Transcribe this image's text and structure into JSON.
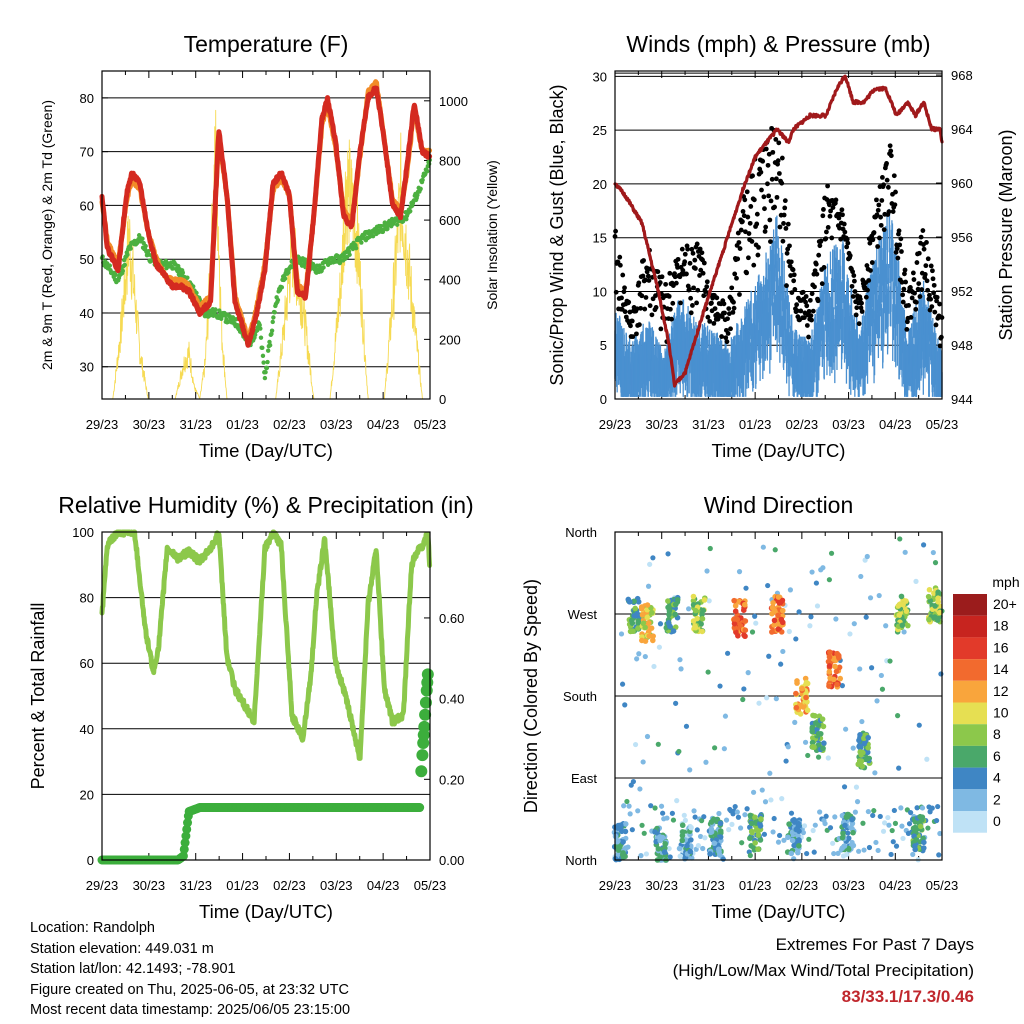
{
  "colors": {
    "red": "#d42a20",
    "orange": "#f28c28",
    "green": "#4cb040",
    "yellow": "#f5d84a",
    "black": "#000000",
    "blue": "#4a90d0",
    "maroon": "#a0191b",
    "rh": "#8cc84b",
    "precip": "#3cae3c"
  },
  "chart_data": [
    {
      "id": "temperature",
      "type": "line",
      "title": "Temperature (F)",
      "xlabel": "Time (Day/UTC)",
      "ylabel": "2m & 9m T (Red, Orange) & 2m Td (Green)",
      "y2label": "Solar Insolation (Yellow)",
      "x_ticks": [
        "29/23",
        "30/23",
        "31/23",
        "01/23",
        "02/23",
        "03/23",
        "04/23",
        "05/23"
      ],
      "xlim": [
        0,
        6.04
      ],
      "ylim": [
        24,
        85
      ],
      "y_ticks": [
        30,
        40,
        50,
        60,
        70,
        80
      ],
      "y2lim": [
        0,
        1100
      ],
      "y2_ticks": [
        0,
        200,
        400,
        600,
        800,
        1000
      ],
      "grid": "horizontal",
      "series": [
        {
          "name": "2m T",
          "color": "red",
          "axis": "y",
          "x": [
            0,
            0.1,
            0.3,
            0.45,
            0.55,
            0.7,
            0.85,
            1.0,
            1.15,
            1.3,
            1.45,
            1.6,
            1.8,
            2.0,
            2.15,
            2.3,
            2.45,
            2.6,
            2.7,
            2.85,
            3.0,
            3.15,
            3.3,
            3.45,
            3.6,
            3.75,
            3.9,
            4.05,
            4.15,
            4.3,
            4.45,
            4.6,
            4.75,
            4.9,
            5.05,
            5.2,
            5.35,
            5.5,
            5.6,
            5.75,
            5.9,
            6.04
          ],
          "y": [
            62,
            52,
            48,
            62,
            66,
            64,
            55,
            49,
            47,
            45,
            45,
            44,
            40,
            42,
            74,
            62,
            42,
            37,
            34,
            40,
            48,
            64,
            66,
            62,
            44,
            43,
            58,
            76,
            80,
            72,
            58,
            56,
            70,
            80,
            82,
            72,
            60,
            58,
            66,
            79,
            70,
            69
          ]
        },
        {
          "name": "9m T",
          "color": "orange",
          "axis": "y",
          "x": [
            0,
            0.1,
            0.3,
            0.45,
            0.55,
            0.7,
            0.85,
            1.0,
            1.15,
            1.3,
            1.45,
            1.6,
            1.8,
            2.0,
            2.15,
            2.3,
            2.45,
            2.6,
            2.7,
            2.85,
            3.0,
            3.15,
            3.3,
            3.45,
            3.6,
            3.75,
            3.9,
            4.05,
            4.15,
            4.3,
            4.45,
            4.6,
            4.75,
            4.9,
            5.05,
            5.2,
            5.35,
            5.5,
            5.6,
            5.75,
            5.9,
            6.04
          ],
          "y": [
            61,
            53,
            49,
            61,
            65,
            63,
            55,
            50,
            47,
            46,
            46,
            45,
            41,
            43,
            73,
            62,
            43,
            38,
            35,
            41,
            49,
            63,
            65,
            62,
            45,
            44,
            58,
            75,
            79,
            71,
            59,
            57,
            69,
            81,
            83,
            72,
            61,
            59,
            65,
            78,
            70,
            70
          ]
        },
        {
          "name": "2m Td",
          "color": "green",
          "axis": "y",
          "x": [
            0,
            0.15,
            0.3,
            0.5,
            0.7,
            0.9,
            1.1,
            1.3,
            1.5,
            1.7,
            1.9,
            2.1,
            2.3,
            2.5,
            2.7,
            2.9,
            3.0,
            3.2,
            3.4,
            3.6,
            3.8,
            4.0,
            4.2,
            4.4,
            4.6,
            4.8,
            5.0,
            5.2,
            5.4,
            5.6,
            5.8,
            6.04
          ],
          "y": [
            50,
            48,
            46,
            52,
            54,
            50,
            49,
            49,
            47,
            44,
            40,
            40,
            39,
            38,
            34,
            38,
            28,
            42,
            48,
            50,
            49,
            48,
            50,
            50,
            52,
            54,
            55,
            56,
            57,
            58,
            62,
            68
          ]
        },
        {
          "name": "Solar Insolation",
          "color": "yellow",
          "axis": "y2",
          "x": [
            0,
            0.2,
            0.35,
            0.5,
            0.6,
            0.7,
            0.85,
            1.0,
            1.2,
            1.35,
            1.5,
            1.6,
            1.7,
            1.8,
            1.9,
            2.0,
            2.1,
            2.2,
            2.3,
            2.4,
            2.6,
            2.8,
            3.0,
            3.2,
            3.35,
            3.5,
            3.7,
            3.9,
            4.0,
            4.2,
            4.4,
            4.5,
            4.7,
            4.9,
            5.0,
            5.2,
            5.4,
            5.5,
            5.7,
            5.9,
            6.04
          ],
          "y": [
            0,
            0,
            300,
            700,
            450,
            200,
            0,
            0,
            0,
            0,
            150,
            200,
            50,
            0,
            150,
            550,
            1080,
            300,
            0,
            0,
            0,
            0,
            0,
            0,
            300,
            650,
            400,
            0,
            0,
            0,
            500,
            950,
            700,
            0,
            0,
            0,
            550,
            900,
            450,
            0,
            0
          ]
        }
      ]
    },
    {
      "id": "winds",
      "type": "scatter",
      "title": "Winds (mph) & Pressure (mb)",
      "xlabel": "Time (Day/UTC)",
      "ylabel": "Sonic/Prop Wind & Gust (Blue, Black)",
      "y2label": "Station Pressure (Maroon)",
      "x_ticks": [
        "29/23",
        "30/23",
        "31/23",
        "01/23",
        "02/23",
        "03/23",
        "04/23",
        "05/23"
      ],
      "xlim": [
        0,
        6.04
      ],
      "ylim": [
        0,
        30.5
      ],
      "y_ticks": [
        0,
        5,
        10,
        15,
        20,
        25,
        30
      ],
      "y2lim": [
        944,
        968.3
      ],
      "y2_ticks": [
        944,
        948,
        952,
        956,
        960,
        964,
        968
      ],
      "grid": "horizontal",
      "series": [
        {
          "name": "Wind (envelope)",
          "color": "blue",
          "axis": "y",
          "x": [
            0,
            0.3,
            0.6,
            0.9,
            1.2,
            1.5,
            1.8,
            2.1,
            2.4,
            2.7,
            3.0,
            3.3,
            3.6,
            3.9,
            4.2,
            4.5,
            4.8,
            5.1,
            5.4,
            5.7,
            6.04
          ],
          "y": [
            8,
            5,
            7,
            4,
            9,
            7,
            6,
            5,
            8,
            11,
            16,
            6,
            5,
            12,
            14,
            6,
            13,
            17,
            6,
            10,
            4
          ]
        },
        {
          "name": "Gust (envelope)",
          "color": "black",
          "axis": "y",
          "x": [
            0,
            0.3,
            0.6,
            0.9,
            1.2,
            1.5,
            1.8,
            2.1,
            2.4,
            2.7,
            3.0,
            3.3,
            3.6,
            3.9,
            4.2,
            4.5,
            4.8,
            5.1,
            5.4,
            5.7,
            6.04
          ],
          "y": [
            16,
            8,
            15,
            11,
            14,
            16,
            10,
            9,
            20,
            24,
            28,
            12,
            9,
            20,
            18,
            9,
            18,
            24,
            10,
            16,
            8
          ]
        },
        {
          "name": "Station Pressure",
          "color": "maroon",
          "axis": "y2",
          "x": [
            0,
            0.2,
            0.5,
            0.8,
            1.0,
            1.1,
            1.3,
            1.6,
            2.0,
            2.4,
            2.6,
            2.8,
            3.0,
            3.2,
            3.3,
            3.6,
            3.9,
            4.1,
            4.25,
            4.4,
            4.6,
            4.8,
            5.0,
            5.2,
            5.4,
            5.55,
            5.7,
            5.85,
            6.0,
            6.04
          ],
          "y": [
            960,
            959,
            957,
            952,
            948,
            945,
            946,
            950,
            955,
            960,
            962,
            963,
            964,
            963,
            964,
            965,
            965,
            967,
            968,
            966,
            966,
            967,
            967,
            965,
            966,
            965,
            966,
            964,
            964,
            963
          ]
        }
      ]
    },
    {
      "id": "humidity",
      "type": "line",
      "title": "Relative Humidity (%) & Precipitation (in)",
      "xlabel": "Time (Day/UTC)",
      "ylabel": "Percent & Total Rainfall",
      "x_ticks": [
        "29/23",
        "30/23",
        "31/23",
        "01/23",
        "02/23",
        "03/23",
        "04/23",
        "05/23"
      ],
      "xlim": [
        0,
        6.04
      ],
      "ylim": [
        0,
        100
      ],
      "y_ticks": [
        0,
        20,
        40,
        60,
        80,
        100
      ],
      "y2lim": [
        0,
        0.813
      ],
      "y2_ticks": [
        "0.00",
        "0.20",
        "0.40",
        "0.60"
      ],
      "grid": "horizontal",
      "series": [
        {
          "name": "Relative Humidity",
          "color": "rh",
          "axis": "y",
          "x": [
            0,
            0.1,
            0.3,
            0.6,
            0.8,
            0.95,
            1.05,
            1.2,
            1.4,
            1.6,
            1.8,
            2.0,
            2.15,
            2.3,
            2.45,
            2.6,
            2.8,
            3.0,
            3.15,
            3.3,
            3.5,
            3.7,
            3.85,
            3.95,
            4.1,
            4.3,
            4.45,
            4.6,
            4.75,
            4.9,
            5.05,
            5.2,
            5.35,
            5.55,
            5.7,
            5.85,
            5.9,
            6.0,
            6.04
          ],
          "y": [
            75,
            96,
            100,
            100,
            70,
            57,
            66,
            95,
            92,
            94,
            91,
            95,
            100,
            62,
            52,
            48,
            42,
            95,
            100,
            96,
            44,
            37,
            57,
            80,
            98,
            60,
            52,
            42,
            31,
            78,
            95,
            52,
            42,
            44,
            90,
            96,
            95,
            100,
            88
          ]
        },
        {
          "name": "Total Rainfall",
          "color": "precip",
          "axis": "y2",
          "x": [
            0,
            0.5,
            1.0,
            1.4,
            1.5,
            1.6,
            1.8,
            2.5,
            3.5,
            4.5,
            5.5,
            5.85,
            5.88,
            5.9,
            5.93,
            5.96,
            6.0,
            6.04
          ],
          "y": [
            0,
            0,
            0,
            0,
            0.01,
            0.12,
            0.13,
            0.13,
            0.13,
            0.13,
            0.13,
            0.13,
            0.22,
            0.3,
            0.33,
            0.4,
            0.46,
            0.46
          ]
        }
      ]
    },
    {
      "id": "wind_direction",
      "type": "scatter",
      "title": "Wind Direction",
      "xlabel": "Time (Day/UTC)",
      "ylabel": "Direction (Colored By Speed)",
      "x_ticks": [
        "29/23",
        "30/23",
        "31/23",
        "01/23",
        "02/23",
        "03/23",
        "04/23",
        "05/23"
      ],
      "xlim": [
        0,
        6.04
      ],
      "ylim": [
        0,
        360
      ],
      "y_ticks": [
        "North",
        "East",
        "South",
        "West",
        "North"
      ],
      "grid": "horizontal",
      "legend": {
        "title": "mph",
        "labels": [
          "20+",
          "18",
          "16",
          "14",
          "12",
          "10",
          "8",
          "6",
          "4",
          "2",
          "0"
        ],
        "colors": [
          "#9b1c1c",
          "#c7241f",
          "#e23a2a",
          "#f26a2e",
          "#f9a53c",
          "#e6df52",
          "#8cc84b",
          "#4aa86a",
          "#3f86c4",
          "#7fb9e3",
          "#bfe2f6"
        ]
      },
      "clusters": [
        {
          "x": 0.1,
          "dir": 20,
          "speed": 4
        },
        {
          "x": 0.35,
          "dir": 270,
          "speed": 6
        },
        {
          "x": 0.6,
          "dir": 260,
          "speed": 10
        },
        {
          "x": 0.85,
          "dir": 15,
          "speed": 4
        },
        {
          "x": 1.05,
          "dir": 270,
          "speed": 6
        },
        {
          "x": 1.3,
          "dir": 20,
          "speed": 3
        },
        {
          "x": 1.55,
          "dir": 270,
          "speed": 8
        },
        {
          "x": 1.85,
          "dir": 25,
          "speed": 4
        },
        {
          "x": 2.3,
          "dir": 265,
          "speed": 14
        },
        {
          "x": 2.6,
          "dir": 30,
          "speed": 6
        },
        {
          "x": 3.0,
          "dir": 270,
          "speed": 14
        },
        {
          "x": 3.3,
          "dir": 25,
          "speed": 4
        },
        {
          "x": 3.45,
          "dir": 180,
          "speed": 12
        },
        {
          "x": 3.75,
          "dir": 140,
          "speed": 6
        },
        {
          "x": 4.05,
          "dir": 210,
          "speed": 14
        },
        {
          "x": 4.3,
          "dir": 30,
          "speed": 4
        },
        {
          "x": 4.6,
          "dir": 120,
          "speed": 6
        },
        {
          "x": 5.3,
          "dir": 270,
          "speed": 8
        },
        {
          "x": 5.6,
          "dir": 30,
          "speed": 6
        },
        {
          "x": 5.9,
          "dir": 280,
          "speed": 8
        }
      ]
    }
  ],
  "info": {
    "location": "Location: Randolph",
    "elevation": "Station elevation: 449.031 m",
    "latlon": "Station lat/lon: 42.1493; -78.901",
    "created": "Figure created on Thu, 2025-06-05, at 23:32 UTC",
    "recent": "Most recent data timestamp: 2025/06/05 23:15:00"
  },
  "extremes": {
    "line1": "Extremes For Past 7 Days",
    "line2": "(High/Low/Max Wind/Total Precipitation)",
    "values": "83/33.1/17.3/0.46"
  }
}
